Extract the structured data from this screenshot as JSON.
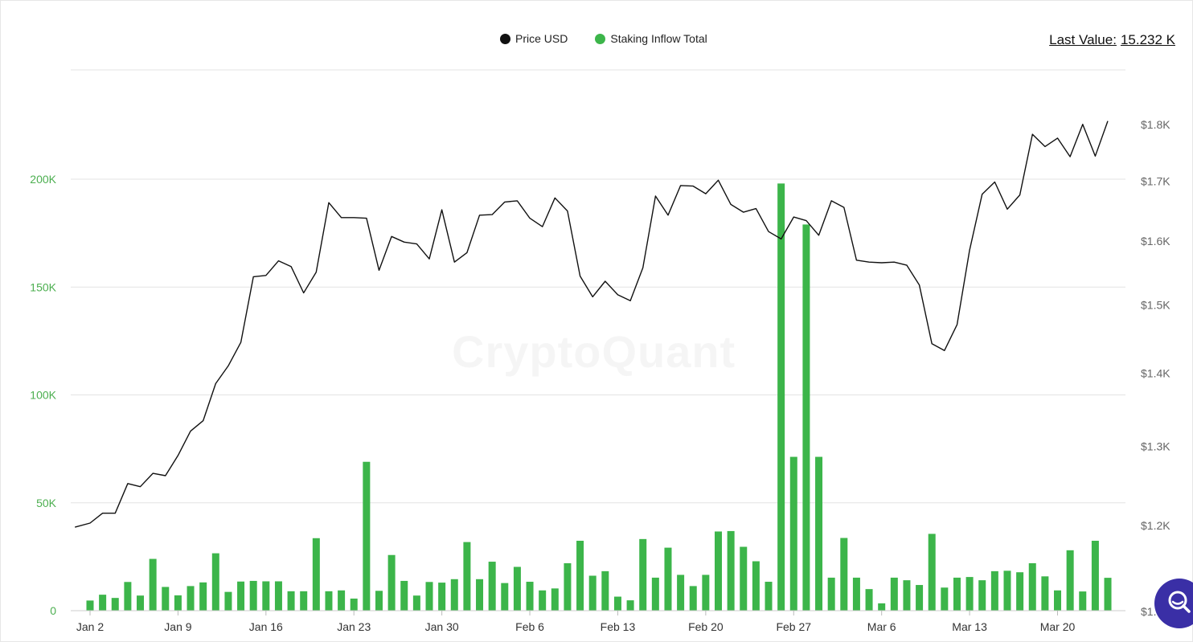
{
  "legend": {
    "price_label": "Price USD",
    "inflow_label": "Staking Inflow Total",
    "price_color": "#111111",
    "inflow_color": "#3cb54a"
  },
  "last_value": {
    "label": "Last Value:",
    "value": "15.232 K"
  },
  "watermark": "CryptoQuant",
  "search_icon": "search-icon",
  "chart_data": {
    "type": "bar+line",
    "x_tick_labels": [
      "Jan 2",
      "Jan 9",
      "Jan 16",
      "Jan 23",
      "Jan 30",
      "Feb 6",
      "Feb 13",
      "Feb 20",
      "Feb 27",
      "Mar 6",
      "Mar 13",
      "Mar 20"
    ],
    "y_left": {
      "series": "Staking Inflow Total",
      "ticks": [
        "0",
        "50K",
        "100K",
        "150K",
        "200K"
      ],
      "ylim": [
        0,
        250000
      ]
    },
    "y_right": {
      "series": "Price USD",
      "ticks": [
        "$1.2K",
        "$1.3K",
        "$1.4K",
        "$1.5K",
        "$1.6K",
        "$1.7K",
        "$1.8K"
      ],
      "ylim": [
        1100,
        1900
      ],
      "scale": "log",
      "last_tick_visible": "$1."
    },
    "series": [
      {
        "name": "Staking Inflow Total",
        "kind": "bar",
        "color": "#3cb54a",
        "day_offset_from_jan2": [
          0,
          1,
          2,
          3,
          4,
          5,
          6,
          7,
          8,
          9,
          10,
          11,
          12,
          13,
          14,
          15,
          16,
          17,
          18,
          19,
          20,
          21,
          22,
          23,
          24,
          25,
          26,
          27,
          28,
          29,
          30,
          31,
          32,
          33,
          34,
          35,
          36,
          37,
          38,
          39,
          40,
          41,
          42,
          43,
          44,
          45,
          46,
          47,
          48,
          49,
          50,
          51,
          52,
          53,
          54,
          55,
          56,
          57,
          58,
          59,
          60,
          61,
          62,
          63,
          64,
          65,
          66,
          67,
          68,
          69,
          70,
          71,
          72,
          73,
          74,
          75,
          76,
          77,
          78,
          79,
          80,
          81
        ],
        "values": [
          4700,
          7400,
          5900,
          13300,
          7000,
          24000,
          11000,
          7100,
          11400,
          13100,
          26600,
          8700,
          13500,
          13800,
          13600,
          13600,
          9000,
          9000,
          33600,
          9000,
          9400,
          5600,
          69000,
          9200,
          25800,
          13800,
          7000,
          13300,
          13000,
          14600,
          31800,
          14600,
          22700,
          12800,
          20300,
          13400,
          9400,
          10300,
          22000,
          32400,
          16200,
          18300,
          6500,
          4800,
          33200,
          15300,
          29200,
          16600,
          11400,
          16600,
          36700,
          36900,
          29600,
          22900,
          13400,
          198000,
          71300,
          179000,
          71300,
          15300,
          33700,
          15300,
          10000,
          3400,
          15300,
          14100,
          11900,
          35600,
          10700,
          15300,
          15600,
          14100,
          18300,
          18500,
          17800,
          22000,
          15900,
          9400,
          28000,
          8900,
          32400,
          15232
        ]
      },
      {
        "name": "Price USD",
        "kind": "line",
        "color": "#111111",
        "day_offset_from_jan2": [
          -1.2,
          0,
          1,
          2,
          3,
          4,
          5,
          6,
          7,
          8,
          9,
          10,
          11,
          12,
          13,
          14,
          15,
          16,
          17,
          18,
          19,
          20,
          21,
          22,
          23,
          24,
          25,
          26,
          27,
          28,
          29,
          30,
          31,
          32,
          33,
          34,
          35,
          36,
          37,
          38,
          39,
          40,
          41,
          42,
          43,
          44,
          45,
          46,
          47,
          48,
          49,
          50,
          51,
          52,
          53,
          54,
          55,
          56,
          57,
          58,
          59,
          60,
          61,
          62,
          63,
          64,
          65,
          66,
          67,
          68,
          69,
          70,
          71,
          72,
          73,
          74,
          75,
          76,
          77,
          78,
          79,
          80,
          81
        ],
        "values": [
          1197,
          1202,
          1214,
          1214,
          1251,
          1247,
          1264,
          1261,
          1287,
          1319,
          1333,
          1384,
          1409,
          1443,
          1542,
          1544,
          1567,
          1558,
          1517,
          1549,
          1662,
          1637,
          1637,
          1636,
          1552,
          1606,
          1597,
          1594,
          1570,
          1650,
          1565,
          1580,
          1641,
          1642,
          1663,
          1665,
          1636,
          1622,
          1670,
          1648,
          1543,
          1511,
          1535,
          1514,
          1505,
          1556,
          1673,
          1641,
          1691,
          1690,
          1677,
          1700,
          1659,
          1646,
          1652,
          1614,
          1602,
          1638,
          1632,
          1608,
          1665,
          1654,
          1568,
          1565,
          1564,
          1565,
          1560,
          1529,
          1441,
          1431,
          1469,
          1584,
          1676,
          1697,
          1651,
          1675,
          1781,
          1759,
          1774,
          1741,
          1799,
          1742,
          1805,
          1811
        ]
      }
    ]
  }
}
